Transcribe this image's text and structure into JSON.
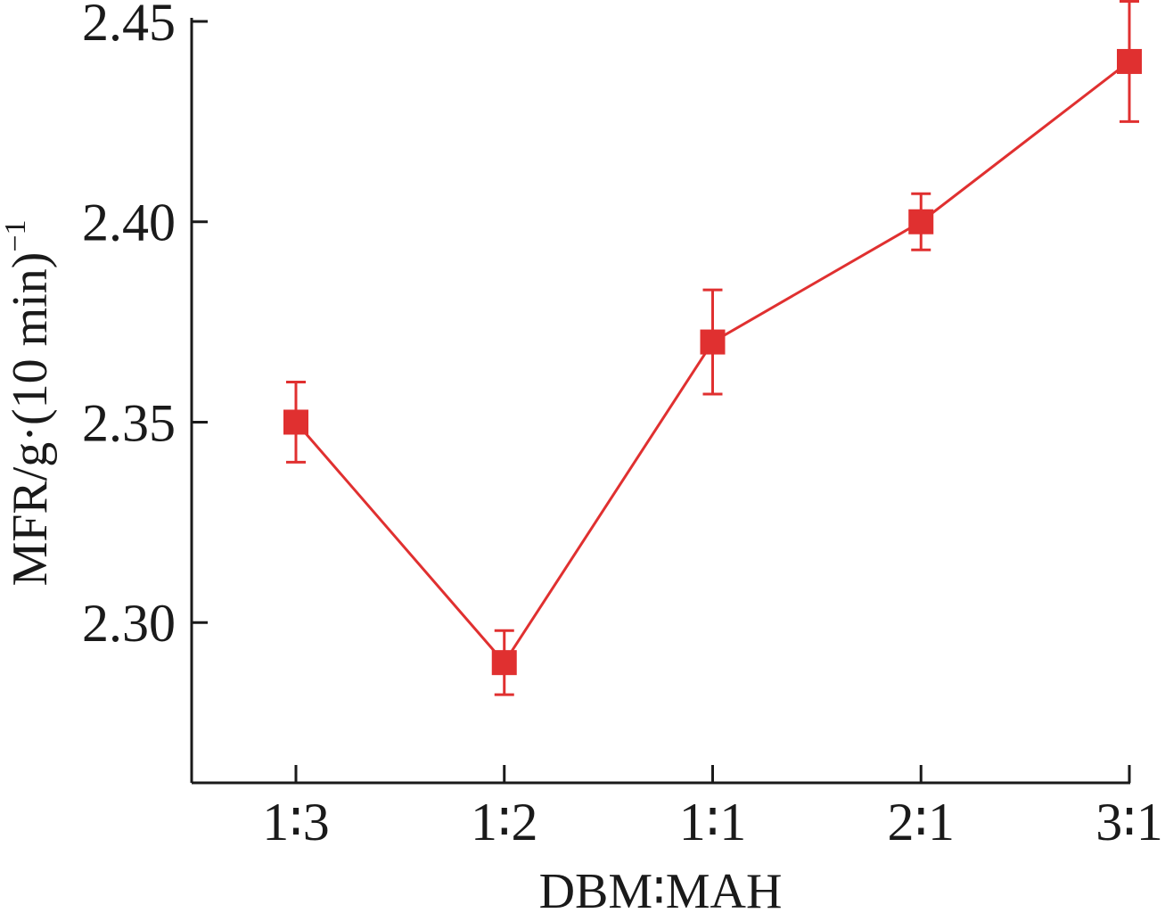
{
  "chart_data": {
    "type": "line",
    "title": "",
    "xlabel": "DBM∶MAH",
    "ylabel": "MFR/g·(10 min)",
    "ylabel_sup": "−1",
    "categories": [
      "1∶3",
      "1∶2",
      "1∶1",
      "2∶1",
      "3∶1"
    ],
    "series": [
      {
        "values": [
          2.35,
          2.29,
          2.37,
          2.4,
          2.44
        ],
        "error": [
          0.01,
          0.008,
          0.013,
          0.007,
          0.015
        ],
        "color": "#e03030",
        "marker": "square"
      }
    ],
    "ylim": [
      2.26,
      2.45
    ],
    "yticks": [
      2.3,
      2.35,
      2.4,
      2.45
    ],
    "ytick_labels": [
      "2.30",
      "2.35",
      "2.40",
      "2.45"
    ],
    "grid": false
  }
}
